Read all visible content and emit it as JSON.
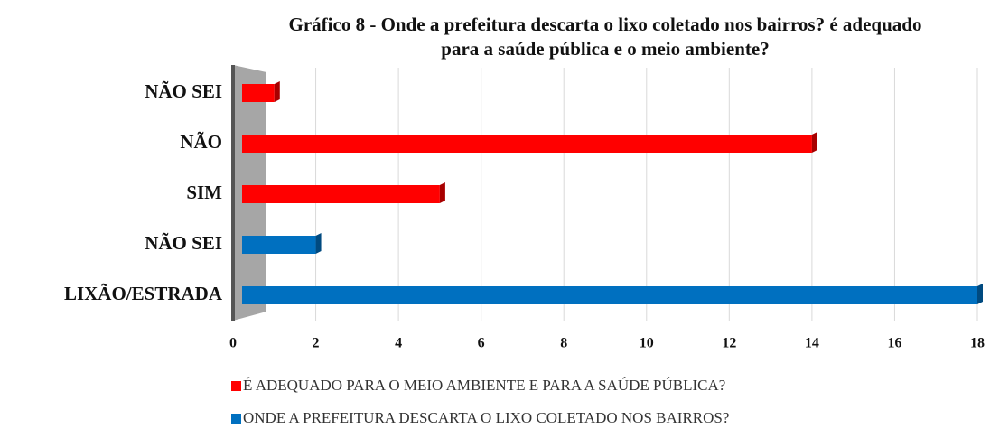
{
  "chart_data": {
    "type": "bar",
    "orientation": "horizontal",
    "title": "Gráfico 8 - Onde a prefeitura descarta o lixo coletado nos bairros? é adequado para a saúde pública e o meio ambiente?",
    "categories": [
      "NÃO SEI",
      "NÃO",
      "SIM",
      "NÃO SEI",
      "LIXÃO/ESTRADA"
    ],
    "series": [
      {
        "name": "É ADEQUADO PARA O MEIO AMBIENTE E PARA A SAÚDE PÚBLICA?",
        "color": "#ff0000",
        "values": [
          1,
          14,
          5,
          null,
          null
        ]
      },
      {
        "name": "ONDE A PREFEITURA DESCARTA O LIXO COLETADO NOS BAIRROS?",
        "color": "#0070c0",
        "values": [
          null,
          null,
          null,
          2,
          18
        ]
      }
    ],
    "xlim": [
      0,
      18
    ],
    "xticks": [
      0,
      2,
      4,
      6,
      8,
      10,
      12,
      14,
      16,
      18
    ],
    "grid": true,
    "legend": "bottom"
  }
}
